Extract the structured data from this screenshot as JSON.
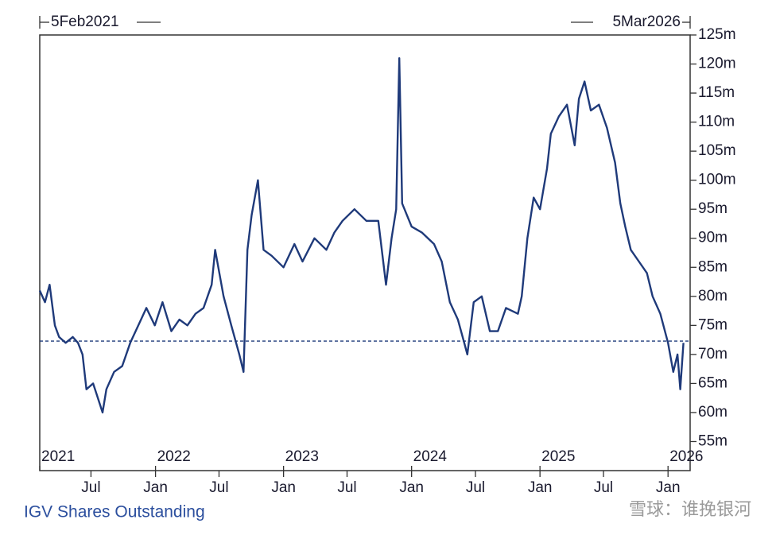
{
  "chart_data": {
    "type": "line",
    "title": "IGV Shares Outstanding",
    "start_label": "5Feb2021",
    "end_label": "5Mar2026",
    "watermark": "雪球：谁挽银河",
    "color": "#1f3a7a",
    "reference_line": 72.3,
    "xlim": [
      "2021-02-05",
      "2026-03-05"
    ],
    "ylim": [
      50,
      125
    ],
    "yticks": [
      {
        "value": 55,
        "label": "55m"
      },
      {
        "value": 60,
        "label": "60m"
      },
      {
        "value": 65,
        "label": "65m"
      },
      {
        "value": 70,
        "label": "70m"
      },
      {
        "value": 75,
        "label": "75m"
      },
      {
        "value": 80,
        "label": "80m"
      },
      {
        "value": 85,
        "label": "85m"
      },
      {
        "value": 90,
        "label": "90m"
      },
      {
        "value": 95,
        "label": "95m"
      },
      {
        "value": 100,
        "label": "100m"
      },
      {
        "value": 105,
        "label": "105m"
      },
      {
        "value": 110,
        "label": "110m"
      },
      {
        "value": 115,
        "label": "115m"
      },
      {
        "value": 120,
        "label": "120m"
      },
      {
        "value": 125,
        "label": "125m"
      }
    ],
    "xticks": [
      {
        "value": "2021-07-01",
        "label": "Jul"
      },
      {
        "value": "2022-01-01",
        "label": "Jan"
      },
      {
        "value": "2022-07-01",
        "label": "Jul"
      },
      {
        "value": "2023-01-01",
        "label": "Jan"
      },
      {
        "value": "2023-07-01",
        "label": "Jul"
      },
      {
        "value": "2024-01-01",
        "label": "Jan"
      },
      {
        "value": "2024-07-01",
        "label": "Jul"
      },
      {
        "value": "2025-01-01",
        "label": "Jan"
      },
      {
        "value": "2025-07-01",
        "label": "Jul"
      },
      {
        "value": "2026-01-01",
        "label": "Jan"
      }
    ],
    "year_labels": [
      {
        "value": "2021-02-05",
        "label": "2021"
      },
      {
        "value": "2022-01-01",
        "label": "2022"
      },
      {
        "value": "2023-01-01",
        "label": "2023"
      },
      {
        "value": "2024-01-01",
        "label": "2024"
      },
      {
        "value": "2025-01-01",
        "label": "2025"
      },
      {
        "value": "2026-01-01",
        "label": "2026"
      }
    ],
    "x": [
      "2021-02-05",
      "2021-02-20",
      "2021-03-05",
      "2021-03-20",
      "2021-04-01",
      "2021-04-20",
      "2021-05-10",
      "2021-05-25",
      "2021-06-07",
      "2021-06-18",
      "2021-07-07",
      "2021-07-18",
      "2021-08-03",
      "2021-08-14",
      "2021-09-05",
      "2021-09-28",
      "2021-10-21",
      "2021-11-13",
      "2021-12-06",
      "2021-12-30",
      "2022-01-21",
      "2022-02-15",
      "2022-03-10",
      "2022-04-02",
      "2022-04-25",
      "2022-05-18",
      "2022-06-10",
      "2022-06-20",
      "2022-07-14",
      "2022-08-05",
      "2022-08-28",
      "2022-09-09",
      "2022-09-20",
      "2022-10-02",
      "2022-10-20",
      "2022-11-05",
      "2022-11-28",
      "2023-01-01",
      "2023-02-01",
      "2023-02-24",
      "2023-03-30",
      "2023-05-03",
      "2023-05-26",
      "2023-06-18",
      "2023-07-22",
      "2023-08-25",
      "2023-09-28",
      "2023-10-20",
      "2023-11-05",
      "2023-11-18",
      "2023-11-27",
      "2023-12-05",
      "2024-01-01",
      "2024-01-30",
      "2024-03-05",
      "2024-03-27",
      "2024-04-19",
      "2024-05-12",
      "2024-05-30",
      "2024-06-08",
      "2024-06-26",
      "2024-07-19",
      "2024-08-11",
      "2024-09-03",
      "2024-09-26",
      "2024-10-30",
      "2024-11-10",
      "2024-11-26",
      "2024-12-14",
      "2025-01-01",
      "2025-01-21",
      "2025-02-01",
      "2025-02-24",
      "2025-03-19",
      "2025-04-10",
      "2025-04-22",
      "2025-05-08",
      "2025-05-26",
      "2025-06-18",
      "2025-07-11",
      "2025-08-03",
      "2025-08-18",
      "2025-09-01",
      "2025-09-17",
      "2025-10-10",
      "2025-11-02",
      "2025-11-18",
      "2025-12-10",
      "2026-01-01",
      "2026-01-16",
      "2026-01-28",
      "2026-02-05",
      "2026-02-14"
    ],
    "values": [
      81,
      79,
      82,
      75,
      73,
      72,
      73,
      72,
      70,
      64,
      65,
      63,
      60,
      64,
      67,
      68,
      72,
      75,
      78,
      75,
      79,
      74,
      76,
      75,
      77,
      78,
      82,
      88,
      80,
      75,
      70,
      67,
      88,
      94,
      100,
      88,
      87,
      85,
      89,
      86,
      90,
      88,
      91,
      93,
      95,
      93,
      93,
      82,
      90,
      95,
      121,
      96,
      92,
      91,
      89,
      86,
      79,
      76,
      72,
      70,
      79,
      80,
      74,
      74,
      78,
      77,
      80,
      90,
      97,
      95,
      102,
      108,
      111,
      113,
      106,
      114,
      117,
      112,
      113,
      109,
      103,
      96,
      92,
      88,
      86,
      84,
      80,
      77,
      72,
      67,
      70,
      64,
      72
    ]
  }
}
